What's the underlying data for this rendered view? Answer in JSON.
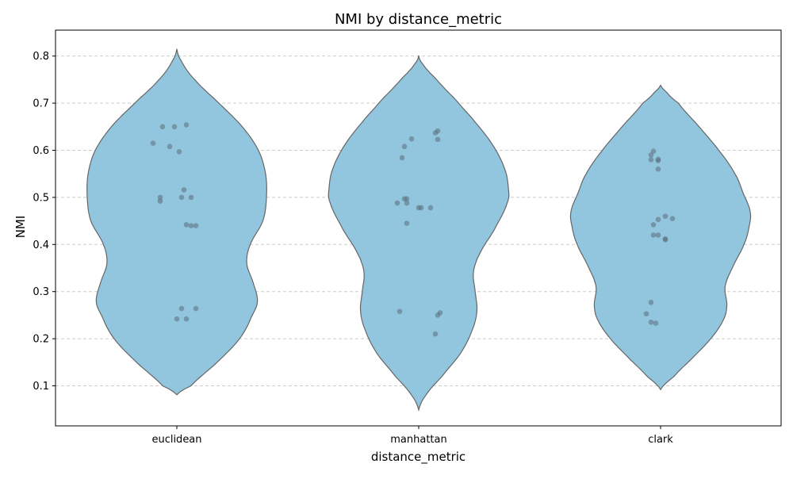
{
  "chart_data": {
    "type": "violin",
    "title": "NMI by distance_metric",
    "xlabel": "distance_metric",
    "ylabel": "NMI",
    "ylim": [
      0.015,
      0.855
    ],
    "yticks": [
      0.1,
      0.2,
      0.3,
      0.4,
      0.5,
      0.6,
      0.7,
      0.8
    ],
    "ytick_labels": [
      "0.1",
      "0.2",
      "0.3",
      "0.4",
      "0.5",
      "0.6",
      "0.7",
      "0.8"
    ],
    "grid": "y, dashed",
    "colors": {
      "violin_fill": "#92c5de",
      "violin_edge": "#666666",
      "points": "#5a6e7a",
      "grid": "#cccccc"
    },
    "categories": [
      "euclidean",
      "manhattan",
      "clark"
    ],
    "series": [
      {
        "category": "euclidean",
        "profile": [
          [
            0.081,
            0.0
          ],
          [
            0.1,
            0.16
          ],
          [
            0.15,
            0.45
          ],
          [
            0.2,
            0.7
          ],
          [
            0.25,
            0.84
          ],
          [
            0.28,
            0.9
          ],
          [
            0.32,
            0.85
          ],
          [
            0.36,
            0.78
          ],
          [
            0.4,
            0.82
          ],
          [
            0.45,
            0.96
          ],
          [
            0.5,
            1.0
          ],
          [
            0.55,
            0.99
          ],
          [
            0.6,
            0.91
          ],
          [
            0.65,
            0.73
          ],
          [
            0.7,
            0.47
          ],
          [
            0.75,
            0.2
          ],
          [
            0.79,
            0.05
          ],
          [
            0.815,
            0.0
          ]
        ],
        "points": [
          {
            "x": -0.06,
            "y": 0.65
          },
          {
            "x": -0.01,
            "y": 0.65
          },
          {
            "x": 0.04,
            "y": 0.654
          },
          {
            "x": -0.1,
            "y": 0.615
          },
          {
            "x": -0.03,
            "y": 0.608
          },
          {
            "x": 0.01,
            "y": 0.597
          },
          {
            "x": 0.03,
            "y": 0.516
          },
          {
            "x": -0.07,
            "y": 0.5
          },
          {
            "x": 0.02,
            "y": 0.5
          },
          {
            "x": 0.06,
            "y": 0.5
          },
          {
            "x": -0.07,
            "y": 0.492
          },
          {
            "x": 0.04,
            "y": 0.442
          },
          {
            "x": 0.06,
            "y": 0.44
          },
          {
            "x": 0.08,
            "y": 0.44
          },
          {
            "x": 0.02,
            "y": 0.264
          },
          {
            "x": 0.08,
            "y": 0.264
          },
          {
            "x": 0.0,
            "y": 0.242
          },
          {
            "x": 0.04,
            "y": 0.242
          }
        ]
      },
      {
        "category": "manhattan",
        "profile": [
          [
            0.049,
            0.0
          ],
          [
            0.08,
            0.08
          ],
          [
            0.12,
            0.26
          ],
          [
            0.17,
            0.47
          ],
          [
            0.22,
            0.6
          ],
          [
            0.26,
            0.65
          ],
          [
            0.3,
            0.63
          ],
          [
            0.34,
            0.61
          ],
          [
            0.38,
            0.68
          ],
          [
            0.43,
            0.84
          ],
          [
            0.49,
            0.99
          ],
          [
            0.52,
            1.0
          ],
          [
            0.56,
            0.96
          ],
          [
            0.61,
            0.83
          ],
          [
            0.66,
            0.63
          ],
          [
            0.71,
            0.4
          ],
          [
            0.75,
            0.2
          ],
          [
            0.785,
            0.04
          ],
          [
            0.801,
            0.0
          ]
        ],
        "points": [
          {
            "x": 0.08,
            "y": 0.641
          },
          {
            "x": 0.07,
            "y": 0.637
          },
          {
            "x": -0.03,
            "y": 0.624
          },
          {
            "x": 0.08,
            "y": 0.623
          },
          {
            "x": -0.06,
            "y": 0.608
          },
          {
            "x": -0.07,
            "y": 0.584
          },
          {
            "x": -0.06,
            "y": 0.497
          },
          {
            "x": -0.05,
            "y": 0.497
          },
          {
            "x": -0.09,
            "y": 0.488
          },
          {
            "x": -0.05,
            "y": 0.488
          },
          {
            "x": 0.0,
            "y": 0.478
          },
          {
            "x": 0.01,
            "y": 0.478
          },
          {
            "x": 0.05,
            "y": 0.478
          },
          {
            "x": -0.05,
            "y": 0.445
          },
          {
            "x": -0.08,
            "y": 0.258
          },
          {
            "x": 0.09,
            "y": 0.255
          },
          {
            "x": 0.08,
            "y": 0.25
          },
          {
            "x": 0.07,
            "y": 0.21
          }
        ]
      },
      {
        "category": "clark",
        "profile": [
          [
            0.092,
            0.0
          ],
          [
            0.12,
            0.15
          ],
          [
            0.16,
            0.36
          ],
          [
            0.2,
            0.56
          ],
          [
            0.24,
            0.7
          ],
          [
            0.27,
            0.74
          ],
          [
            0.31,
            0.72
          ],
          [
            0.35,
            0.8
          ],
          [
            0.4,
            0.93
          ],
          [
            0.44,
            0.99
          ],
          [
            0.47,
            1.0
          ],
          [
            0.51,
            0.92
          ],
          [
            0.55,
            0.83
          ],
          [
            0.6,
            0.65
          ],
          [
            0.65,
            0.43
          ],
          [
            0.7,
            0.2
          ],
          [
            0.725,
            0.06
          ],
          [
            0.738,
            0.0
          ]
        ],
        "points": [
          {
            "x": -0.03,
            "y": 0.598
          },
          {
            "x": -0.04,
            "y": 0.59
          },
          {
            "x": -0.04,
            "y": 0.58
          },
          {
            "x": -0.01,
            "y": 0.581
          },
          {
            "x": -0.01,
            "y": 0.578
          },
          {
            "x": -0.01,
            "y": 0.56
          },
          {
            "x": 0.02,
            "y": 0.46
          },
          {
            "x": 0.05,
            "y": 0.455
          },
          {
            "x": -0.01,
            "y": 0.453
          },
          {
            "x": -0.03,
            "y": 0.442
          },
          {
            "x": -0.03,
            "y": 0.42
          },
          {
            "x": -0.01,
            "y": 0.42
          },
          {
            "x": 0.02,
            "y": 0.412
          },
          {
            "x": 0.02,
            "y": 0.41
          },
          {
            "x": -0.04,
            "y": 0.277
          },
          {
            "x": -0.06,
            "y": 0.253
          },
          {
            "x": -0.04,
            "y": 0.235
          },
          {
            "x": -0.02,
            "y": 0.233
          }
        ]
      }
    ]
  }
}
